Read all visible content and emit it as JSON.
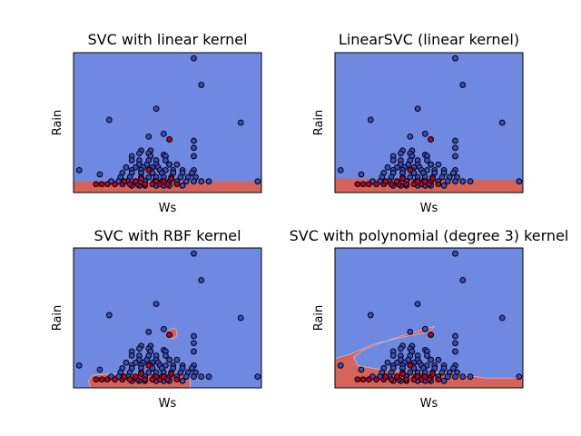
{
  "figure": {
    "colors": {
      "class_0_region": "#7089e0",
      "class_1_region": "#d4645a",
      "class_0_point": "#3b4cc0",
      "class_1_point": "#b40426",
      "point_edge": "#000000",
      "axes_edge": "#000000"
    }
  },
  "chart_data": [
    {
      "type": "scatter",
      "title": "SVC with linear kernel",
      "xlabel": "Ws",
      "ylabel": "Rain",
      "grid": false,
      "legend": "none",
      "ticks": "none",
      "decision_boundary": {
        "shape": "band",
        "x": [
          0,
          100
        ],
        "upper_y": [
          8,
          8
        ]
      }
    },
    {
      "type": "scatter",
      "title": "LinearSVC (linear kernel)",
      "xlabel": "Ws",
      "ylabel": "Rain",
      "grid": false,
      "legend": "none",
      "ticks": "none",
      "decision_boundary": {
        "shape": "band",
        "x": [
          0,
          100
        ],
        "upper_y": [
          10,
          9
        ]
      }
    },
    {
      "type": "scatter",
      "title": "SVC with RBF kernel",
      "xlabel": "Ws",
      "ylabel": "Rain",
      "grid": false,
      "legend": "none",
      "ticks": "none",
      "decision_boundary": {
        "shape": "blobs",
        "blobs": [
          [
            [
              9,
              0
            ],
            [
              8,
              5
            ],
            [
              10,
              9
            ],
            [
              20,
              10
            ],
            [
              40,
              10
            ],
            [
              60,
              10
            ],
            [
              62,
              6
            ],
            [
              62,
              0
            ]
          ],
          [
            [
              50,
              38
            ],
            [
              51,
              41
            ],
            [
              53,
              43
            ],
            [
              55,
              41
            ],
            [
              55,
              37
            ],
            [
              53,
              35
            ],
            [
              51,
              36
            ]
          ]
        ]
      }
    },
    {
      "type": "scatter",
      "title": "SVC with polynomial (degree 3) kernel",
      "xlabel": "Ws",
      "ylabel": "Rain",
      "grid": false,
      "legend": "none",
      "ticks": "none",
      "decision_boundary": {
        "shape": "blobs",
        "blobs": [
          [
            [
              0,
              0
            ],
            [
              0,
              21
            ],
            [
              8,
              24
            ],
            [
              20,
              31
            ],
            [
              35,
              36
            ],
            [
              50,
              40
            ],
            [
              53,
              44
            ],
            [
              48,
              42
            ],
            [
              35,
              37
            ],
            [
              22,
              31
            ],
            [
              15,
              27
            ],
            [
              10,
              22
            ],
            [
              12,
              16
            ],
            [
              20,
              14
            ],
            [
              35,
              12
            ],
            [
              50,
              11
            ],
            [
              65,
              10
            ],
            [
              80,
              7
            ],
            [
              90,
              7
            ],
            [
              100,
              7
            ],
            [
              100,
              0
            ]
          ]
        ]
      }
    }
  ],
  "points": {
    "class_0": [
      [
        64,
        96
      ],
      [
        68,
        77
      ],
      [
        44,
        60
      ],
      [
        19,
        52
      ],
      [
        89,
        50
      ],
      [
        48,
        42
      ],
      [
        40,
        40
      ],
      [
        51,
        38
      ],
      [
        64,
        37
      ],
      [
        64,
        32
      ],
      [
        36,
        30
      ],
      [
        41,
        30
      ],
      [
        35,
        28
      ],
      [
        40,
        28
      ],
      [
        48,
        27
      ],
      [
        31,
        26
      ],
      [
        41,
        26
      ],
      [
        49,
        26
      ],
      [
        64,
        26
      ],
      [
        31,
        23
      ],
      [
        35,
        23
      ],
      [
        40,
        23
      ],
      [
        44,
        23
      ],
      [
        49,
        23
      ],
      [
        51,
        20
      ],
      [
        35,
        20
      ],
      [
        39,
        20
      ],
      [
        44,
        20
      ],
      [
        51,
        20
      ],
      [
        55,
        20
      ],
      [
        3,
        16
      ],
      [
        28,
        18
      ],
      [
        33,
        18
      ],
      [
        37,
        18
      ],
      [
        42,
        18
      ],
      [
        45,
        18
      ],
      [
        31,
        16
      ],
      [
        36,
        16
      ],
      [
        41,
        16
      ],
      [
        46,
        16
      ],
      [
        49,
        16
      ],
      [
        53,
        16
      ],
      [
        58,
        16
      ],
      [
        64,
        16
      ],
      [
        14,
        13
      ],
      [
        26,
        14
      ],
      [
        31,
        14
      ],
      [
        36,
        14
      ],
      [
        42,
        14
      ],
      [
        47,
        14
      ],
      [
        53,
        14
      ],
      [
        58,
        14
      ],
      [
        63,
        14
      ],
      [
        25,
        11
      ],
      [
        30,
        11
      ],
      [
        36,
        11
      ],
      [
        40,
        11
      ],
      [
        44,
        11
      ],
      [
        48,
        11
      ],
      [
        52,
        11
      ],
      [
        57,
        11
      ],
      [
        61,
        11
      ],
      [
        65,
        11
      ],
      [
        20,
        8
      ],
      [
        24,
        8
      ],
      [
        29,
        8
      ],
      [
        33,
        8
      ],
      [
        38,
        8
      ],
      [
        43,
        8
      ],
      [
        47,
        8
      ],
      [
        51,
        8
      ],
      [
        55,
        8
      ],
      [
        60,
        8
      ],
      [
        64,
        8
      ],
      [
        68,
        8
      ],
      [
        72,
        8
      ],
      [
        31,
        5
      ],
      [
        35,
        5
      ],
      [
        38,
        5
      ],
      [
        44,
        5
      ],
      [
        48,
        5
      ],
      [
        51,
        5
      ],
      [
        58,
        5
      ],
      [
        98,
        8
      ]
    ],
    "class_1": [
      [
        51,
        38
      ],
      [
        40,
        16
      ],
      [
        12,
        6
      ],
      [
        15,
        6
      ],
      [
        18,
        6
      ],
      [
        22,
        6
      ],
      [
        26,
        6
      ],
      [
        30,
        6
      ],
      [
        34,
        6
      ],
      [
        38,
        6
      ],
      [
        42,
        6
      ],
      [
        46,
        6
      ],
      [
        50,
        6
      ],
      [
        55,
        6
      ],
      [
        27,
        8
      ],
      [
        33,
        8
      ],
      [
        44,
        8
      ],
      [
        48,
        8
      ],
      [
        36,
        10
      ],
      [
        52,
        10
      ]
    ]
  }
}
